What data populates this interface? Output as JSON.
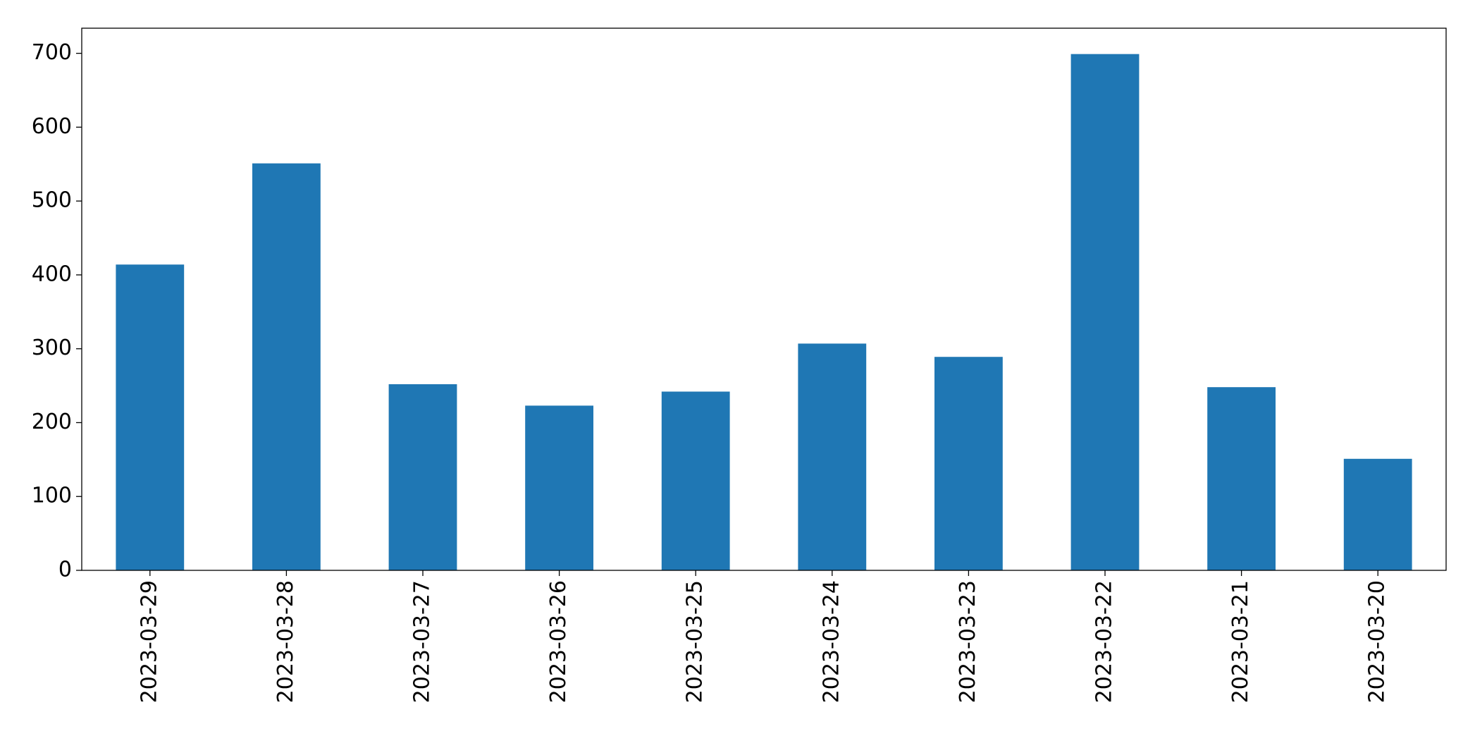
{
  "chart_data": {
    "type": "bar",
    "categories": [
      "2023-03-29",
      "2023-03-28",
      "2023-03-27",
      "2023-03-26",
      "2023-03-25",
      "2023-03-24",
      "2023-03-23",
      "2023-03-22",
      "2023-03-21",
      "2023-03-20"
    ],
    "values": [
      414,
      551,
      252,
      223,
      242,
      307,
      289,
      699,
      248,
      151
    ],
    "color": "#1f77b4",
    "ylim": [
      0,
      734
    ],
    "yticks": [
      0,
      100,
      200,
      300,
      400,
      500,
      600,
      700
    ],
    "grid": false
  }
}
